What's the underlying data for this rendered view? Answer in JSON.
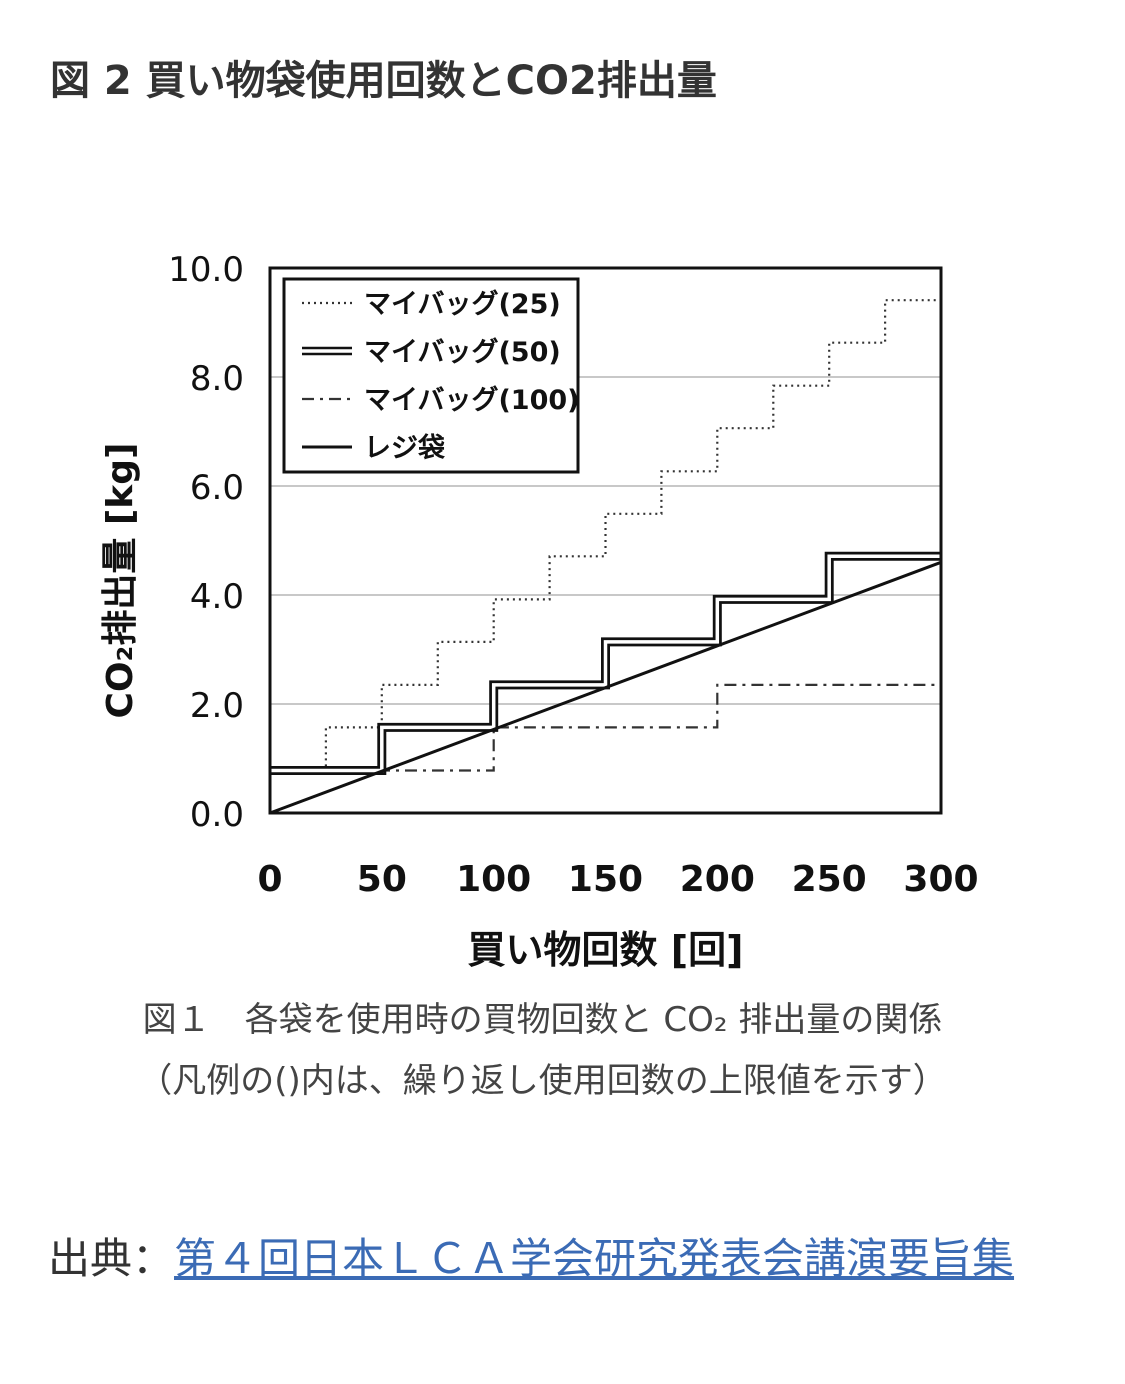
{
  "page": {
    "heading": "図 2 買い物袋使用回数とCO2排出量",
    "caption_line1": "図１　各袋を使用時の買物回数と CO₂ 排出量の関係",
    "caption_line2": "（凡例の()内は、繰り返し使用回数の上限値を示す）",
    "source_label": "出典：",
    "source_link_text": "第４回日本ＬＣＡ学会研究発表会講演要旨集"
  },
  "chart_data": {
    "type": "line",
    "title": "",
    "xlabel": "買い物回数 [回]",
    "ylabel": "CO₂排出量 [kg]",
    "xlim": [
      0,
      300
    ],
    "ylim": [
      0,
      10
    ],
    "xticks": [
      "0",
      "50",
      "100",
      "150",
      "200",
      "250",
      "300"
    ],
    "yticks": [
      "0.0",
      "2.0",
      "4.0",
      "6.0",
      "8.0",
      "10.0"
    ],
    "grid": "horizontal",
    "legend_position": "top-left",
    "series": [
      {
        "name": "マイバッグ(25)",
        "style": "dotted",
        "x": [
          0,
          25,
          25,
          50,
          50,
          75,
          75,
          100,
          100,
          125,
          125,
          150,
          150,
          175,
          175,
          200,
          200,
          225,
          225,
          250,
          250,
          275,
          275,
          300
        ],
        "y": [
          0.78,
          0.78,
          1.57,
          1.57,
          2.35,
          2.35,
          3.14,
          3.14,
          3.92,
          3.92,
          4.71,
          4.71,
          5.49,
          5.49,
          6.27,
          6.27,
          7.06,
          7.06,
          7.84,
          7.84,
          8.63,
          8.63,
          9.41,
          9.41
        ]
      },
      {
        "name": "マイバッグ(50)",
        "style": "double",
        "x": [
          0,
          50,
          50,
          100,
          100,
          150,
          150,
          200,
          200,
          250,
          250,
          300
        ],
        "y": [
          0.78,
          0.78,
          1.57,
          1.57,
          2.35,
          2.35,
          3.14,
          3.14,
          3.92,
          3.92,
          4.71,
          4.71
        ]
      },
      {
        "name": "マイバッグ(100)",
        "style": "dashdot",
        "x": [
          0,
          100,
          100,
          200,
          200,
          300
        ],
        "y": [
          0.78,
          0.78,
          1.57,
          1.57,
          2.35,
          2.35
        ]
      },
      {
        "name": "レジ袋",
        "style": "solid",
        "x": [
          0,
          300
        ],
        "y": [
          0,
          4.6
        ]
      }
    ]
  }
}
